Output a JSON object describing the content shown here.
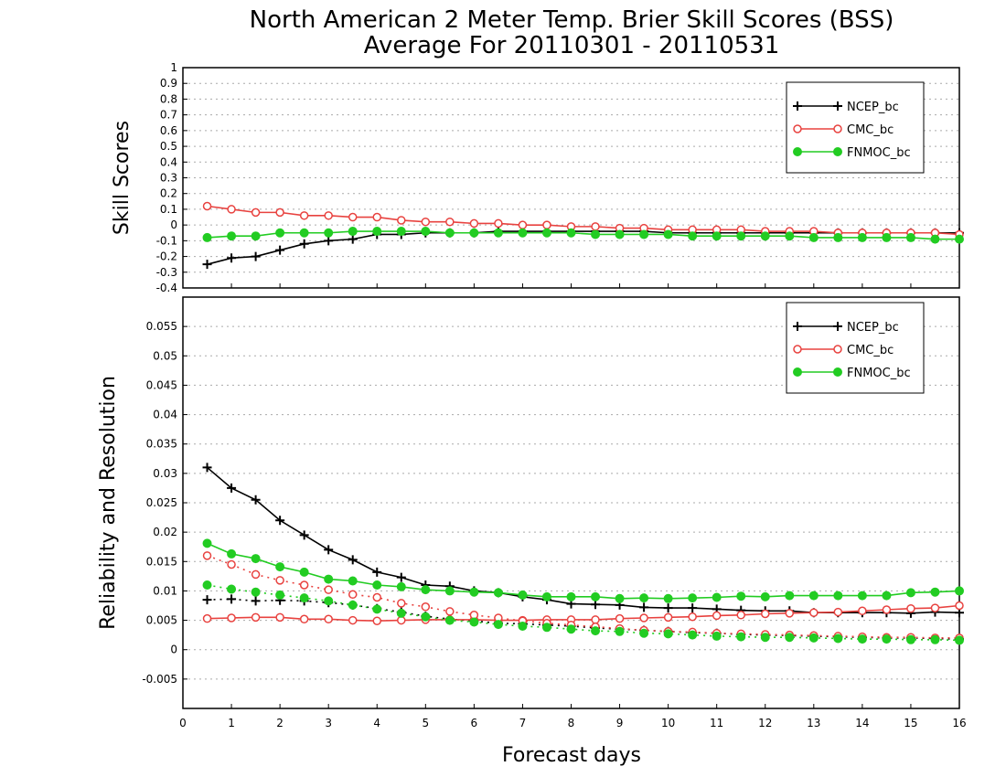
{
  "title": {
    "line1": "North American 2 Meter Temp. Brier Skill Scores (BSS)",
    "line2": "Average For 20110301 - 20110531"
  },
  "xlabel": "Forecast days",
  "colors": {
    "NCEP_bc": "#000000",
    "CMC_bc": "#e8423f",
    "FNMOC_bc": "#22cc22",
    "grid": "#aaaaaa"
  },
  "legend_entries": [
    "NCEP_bc",
    "CMC_bc",
    "FNMOC_bc"
  ],
  "chart_data": [
    {
      "type": "line",
      "ylabel": "Skill Scores",
      "xlim": [
        0,
        16
      ],
      "ylim": [
        -0.4,
        1
      ],
      "x_ticks": [
        0,
        1,
        2,
        3,
        4,
        5,
        6,
        7,
        8,
        9,
        10,
        11,
        12,
        13,
        14,
        15,
        16
      ],
      "y_ticks": [
        -0.4,
        -0.3,
        -0.2,
        -0.1,
        0,
        0.1,
        0.2,
        0.3,
        0.4,
        0.5,
        0.6,
        0.7,
        0.8,
        0.9,
        1
      ],
      "y_tick_labels": [
        "-0.4",
        "-0.3",
        "-0.2",
        "-0.1",
        "0",
        "0.1",
        "0.2",
        "0.3",
        "0.4",
        "0.5",
        "0.6",
        "0.7",
        "0.8",
        "0.9",
        "1"
      ],
      "grid": true,
      "legend_position": "top-right",
      "x": [
        0.5,
        1,
        1.5,
        2,
        2.5,
        3,
        3.5,
        4,
        4.5,
        5,
        5.5,
        6,
        6.5,
        7,
        7.5,
        8,
        8.5,
        9,
        9.5,
        10,
        10.5,
        11,
        11.5,
        12,
        12.5,
        13,
        13.5,
        14,
        14.5,
        15,
        15.5,
        16
      ],
      "series": [
        {
          "name": "NCEP_bc",
          "style": "solid",
          "marker": "plus",
          "values": [
            -0.25,
            -0.21,
            -0.2,
            -0.16,
            -0.12,
            -0.1,
            -0.09,
            -0.06,
            -0.06,
            -0.05,
            -0.05,
            -0.05,
            -0.04,
            -0.04,
            -0.04,
            -0.04,
            -0.04,
            -0.04,
            -0.04,
            -0.05,
            -0.05,
            -0.05,
            -0.05,
            -0.05,
            -0.05,
            -0.05,
            -0.05,
            -0.05,
            -0.05,
            -0.05,
            -0.05,
            -0.05
          ]
        },
        {
          "name": "CMC_bc",
          "style": "solid",
          "marker": "open-circle",
          "values": [
            0.12,
            0.1,
            0.08,
            0.08,
            0.06,
            0.06,
            0.05,
            0.05,
            0.03,
            0.02,
            0.02,
            0.01,
            0.01,
            0,
            0,
            -0.01,
            -0.01,
            -0.02,
            -0.02,
            -0.03,
            -0.03,
            -0.03,
            -0.03,
            -0.04,
            -0.04,
            -0.04,
            -0.05,
            -0.05,
            -0.05,
            -0.05,
            -0.05,
            -0.06
          ]
        },
        {
          "name": "FNMOC_bc",
          "style": "solid",
          "marker": "filled-circle",
          "values": [
            -0.08,
            -0.07,
            -0.07,
            -0.05,
            -0.05,
            -0.05,
            -0.04,
            -0.04,
            -0.04,
            -0.04,
            -0.05,
            -0.05,
            -0.05,
            -0.05,
            -0.05,
            -0.05,
            -0.06,
            -0.06,
            -0.06,
            -0.06,
            -0.07,
            -0.07,
            -0.07,
            -0.07,
            -0.07,
            -0.08,
            -0.08,
            -0.08,
            -0.08,
            -0.08,
            -0.09,
            -0.09
          ]
        }
      ]
    },
    {
      "type": "line",
      "ylabel": "Reliability and Resolution",
      "xlabel": "Forecast days",
      "xlim": [
        0,
        16
      ],
      "ylim": [
        -0.01,
        0.06
      ],
      "x_ticks": [
        0,
        1,
        2,
        3,
        4,
        5,
        6,
        7,
        8,
        9,
        10,
        11,
        12,
        13,
        14,
        15,
        16
      ],
      "y_ticks": [
        -0.005,
        0,
        0.005,
        0.01,
        0.015,
        0.02,
        0.025,
        0.03,
        0.035,
        0.04,
        0.045,
        0.05,
        0.055
      ],
      "y_tick_labels": [
        "-0.005",
        "0",
        "0.005",
        "0.01",
        "0.015",
        "0.02",
        "0.025",
        "0.03",
        "0.035",
        "0.04",
        "0.045",
        "0.05",
        "0.055"
      ],
      "grid": true,
      "legend_position": "top-right",
      "x": [
        0.5,
        1,
        1.5,
        2,
        2.5,
        3,
        3.5,
        4,
        4.5,
        5,
        5.5,
        6,
        6.5,
        7,
        7.5,
        8,
        8.5,
        9,
        9.5,
        10,
        10.5,
        11,
        11.5,
        12,
        12.5,
        13,
        13.5,
        14,
        14.5,
        15,
        15.5,
        16
      ],
      "series": [
        {
          "name": "NCEP_bc",
          "style": "solid",
          "marker": "plus",
          "values": [
            0.031,
            0.0275,
            0.0255,
            0.022,
            0.0195,
            0.017,
            0.0153,
            0.0132,
            0.0123,
            0.011,
            0.0108,
            0.01,
            0.0097,
            0.009,
            0.0085,
            0.0078,
            0.0077,
            0.0076,
            0.0072,
            0.0071,
            0.0071,
            0.0069,
            0.0067,
            0.0066,
            0.0066,
            0.0063,
            0.0063,
            0.0063,
            0.0063,
            0.0062,
            0.0064,
            0.0063
          ]
        },
        {
          "name": "NCEP_bc",
          "style": "dotted",
          "marker": "plus",
          "values": [
            0.0085,
            0.0086,
            0.0083,
            0.0084,
            0.0083,
            0.008,
            0.0076,
            0.007,
            0.0064,
            0.0057,
            0.0052,
            0.0049,
            0.0045,
            0.0044,
            0.0042,
            0.004,
            0.0037,
            0.0035,
            0.0033,
            0.0031,
            0.0029,
            0.0028,
            0.0026,
            0.0025,
            0.0024,
            0.0023,
            0.0022,
            0.0021,
            0.002,
            0.002,
            0.0019,
            0.0018
          ]
        },
        {
          "name": "CMC_bc",
          "style": "solid",
          "marker": "open-circle",
          "values": [
            0.0053,
            0.0054,
            0.0055,
            0.0055,
            0.0052,
            0.0052,
            0.005,
            0.0049,
            0.005,
            0.0051,
            0.0051,
            0.0051,
            0.005,
            0.005,
            0.0051,
            0.0051,
            0.0051,
            0.0053,
            0.0054,
            0.0055,
            0.0056,
            0.0058,
            0.0059,
            0.0061,
            0.0062,
            0.0063,
            0.0064,
            0.0066,
            0.0068,
            0.007,
            0.0071,
            0.0075
          ]
        },
        {
          "name": "CMC_bc",
          "style": "dotted",
          "marker": "open-circle",
          "values": [
            0.016,
            0.0145,
            0.0128,
            0.0118,
            0.011,
            0.0102,
            0.0094,
            0.0089,
            0.0079,
            0.0073,
            0.0065,
            0.0059,
            0.0054,
            0.0049,
            0.0045,
            0.0042,
            0.0039,
            0.0036,
            0.0033,
            0.0031,
            0.003,
            0.0028,
            0.0027,
            0.0026,
            0.0025,
            0.0024,
            0.0023,
            0.0022,
            0.0021,
            0.0021,
            0.002,
            0.002
          ]
        },
        {
          "name": "FNMOC_bc",
          "style": "solid",
          "marker": "filled-circle",
          "values": [
            0.0181,
            0.0163,
            0.0155,
            0.0141,
            0.0132,
            0.012,
            0.0117,
            0.011,
            0.0107,
            0.0102,
            0.01,
            0.0098,
            0.0097,
            0.0093,
            0.009,
            0.009,
            0.009,
            0.0087,
            0.0088,
            0.0087,
            0.0088,
            0.0089,
            0.0091,
            0.009,
            0.0092,
            0.0092,
            0.0092,
            0.0092,
            0.0092,
            0.0097,
            0.0098,
            0.01
          ]
        },
        {
          "name": "FNMOC_bc",
          "style": "dotted",
          "marker": "filled-circle",
          "values": [
            0.011,
            0.0103,
            0.0098,
            0.0093,
            0.0088,
            0.0083,
            0.0076,
            0.0069,
            0.0062,
            0.0056,
            0.005,
            0.0047,
            0.0043,
            0.004,
            0.0038,
            0.0035,
            0.0032,
            0.0031,
            0.0028,
            0.0027,
            0.0025,
            0.0023,
            0.0022,
            0.0021,
            0.0021,
            0.002,
            0.0019,
            0.0018,
            0.0018,
            0.0017,
            0.0017,
            0.0016
          ]
        }
      ]
    }
  ]
}
